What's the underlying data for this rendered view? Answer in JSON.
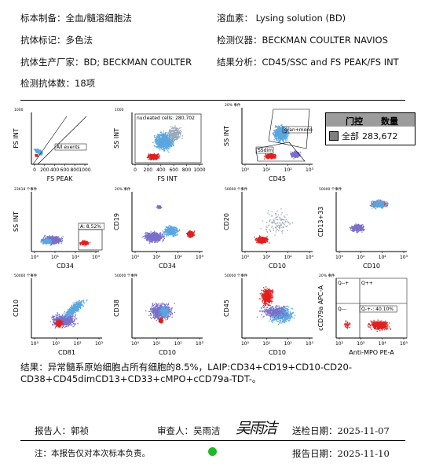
{
  "header": {
    "specimen_label": "标本制备：全血/髓溶细胞法",
    "lysing_label": "溶血素： Lysing solution (BD)",
    "marker_label": "抗体标记：多色法",
    "instrument_label": "检测仪器：BECKMAN COULTER NAVIOS",
    "vendor_label": "抗体生产厂家：BD; BECKMAN COULTER",
    "analysis_label": "结果分析：CD45/SSC and FS PEAK/FS INT",
    "count_label": "检测抗体数：18项"
  },
  "plots": [
    {
      "id": "p1",
      "xlabel": "FS PEAK",
      "ylabel": "FS INT",
      "xticks": [
        "0",
        "200",
        "400",
        "600",
        "800",
        "1000"
      ],
      "ytop": "1000",
      "gate": "All events"
    },
    {
      "id": "p2",
      "xlabel": "FS INT",
      "ylabel": "SS INT",
      "xticks": [
        "0",
        "200",
        "400",
        "600",
        "800",
        "1000"
      ],
      "ytop": "1000",
      "gate": "nucleated cells: 280,702"
    },
    {
      "id": "p3",
      "xlabel": "CD45",
      "ylabel": "SS INT",
      "xticks": [
        "10⁰",
        "10¹",
        "10²",
        "10³"
      ],
      "ytop": "20% 事件",
      "gate": "gran+mono",
      "gate2": "SSdim"
    },
    {
      "id": "p4",
      "xlabel": "CD34",
      "ylabel": "SS INT",
      "xticks": [
        "10⁰",
        "10¹",
        "10²",
        "10³"
      ],
      "ytop": "23618 个事件",
      "gate": "A: 8.52%"
    },
    {
      "id": "p5",
      "xlabel": "CD34",
      "ylabel": "CD19",
      "xticks": [
        "10⁰",
        "10¹",
        "10²",
        "10³"
      ],
      "ytop": "20% 事件"
    },
    {
      "id": "p6",
      "xlabel": "CD10",
      "ylabel": "CD20",
      "xticks": [
        "10⁰",
        "10¹",
        "10²",
        "10³"
      ],
      "ytop": "50000 个事件"
    },
    {
      "id": "p7",
      "xlabel": "CD10",
      "ylabel": "CD13+33",
      "xticks": [
        "10⁰",
        "10¹",
        "10²",
        "10³"
      ],
      "ytop": "50000 个事件"
    },
    {
      "id": "p8",
      "xlabel": "CD81",
      "ylabel": "CD10",
      "xticks": [
        "10⁰",
        "10¹",
        "10²",
        "10³"
      ],
      "ytop": "50000 个事件"
    },
    {
      "id": "p9",
      "xlabel": "CD10",
      "ylabel": "CD38",
      "xticks": [
        "10⁰",
        "10¹",
        "10²",
        "10³"
      ],
      "ytop": "50000 个事件"
    },
    {
      "id": "p10",
      "xlabel": "CD10",
      "ylabel": "CD45",
      "xticks": [
        "10⁰",
        "10¹",
        "10²",
        "10³"
      ],
      "ytop": "50000 个事件"
    },
    {
      "id": "p11",
      "xlabel": "Anti-MPO PE-A",
      "ylabel": "cCD79a APC-A",
      "xticks": [
        "10²",
        "10³",
        "10⁴",
        "10⁵"
      ],
      "ytop": "20% 事件",
      "quads": [
        "Q--+",
        "Q++",
        "Q---",
        "Q-+-: 40.10%"
      ]
    }
  ],
  "gate_table": {
    "col1": "门控",
    "col2": "数量",
    "row_label": "全部",
    "row_value": "283,672"
  },
  "result_text": "结果：异常髓系原始细胞占所有细胞的8.5%，LAIP:CD34+CD19+CD10-CD20-CD38+CD45dimCD13+CD33+cMPO+cCD79a-TDT-。",
  "footer": {
    "reporter": "报告人：郭祯",
    "reviewer": "审查人：吴雨洁",
    "signature": "吴雨洁",
    "receive_date": "送检日期：2025-11-07",
    "note": "注：本报告仅对本次标本负责。",
    "report_date": "报告日期：2025-11-10"
  },
  "colors": {
    "blue": "#5aa6e0",
    "red": "#e02020",
    "purple": "#7a6fc8",
    "gray": "#9aa8b8",
    "status": "#1fb829"
  }
}
